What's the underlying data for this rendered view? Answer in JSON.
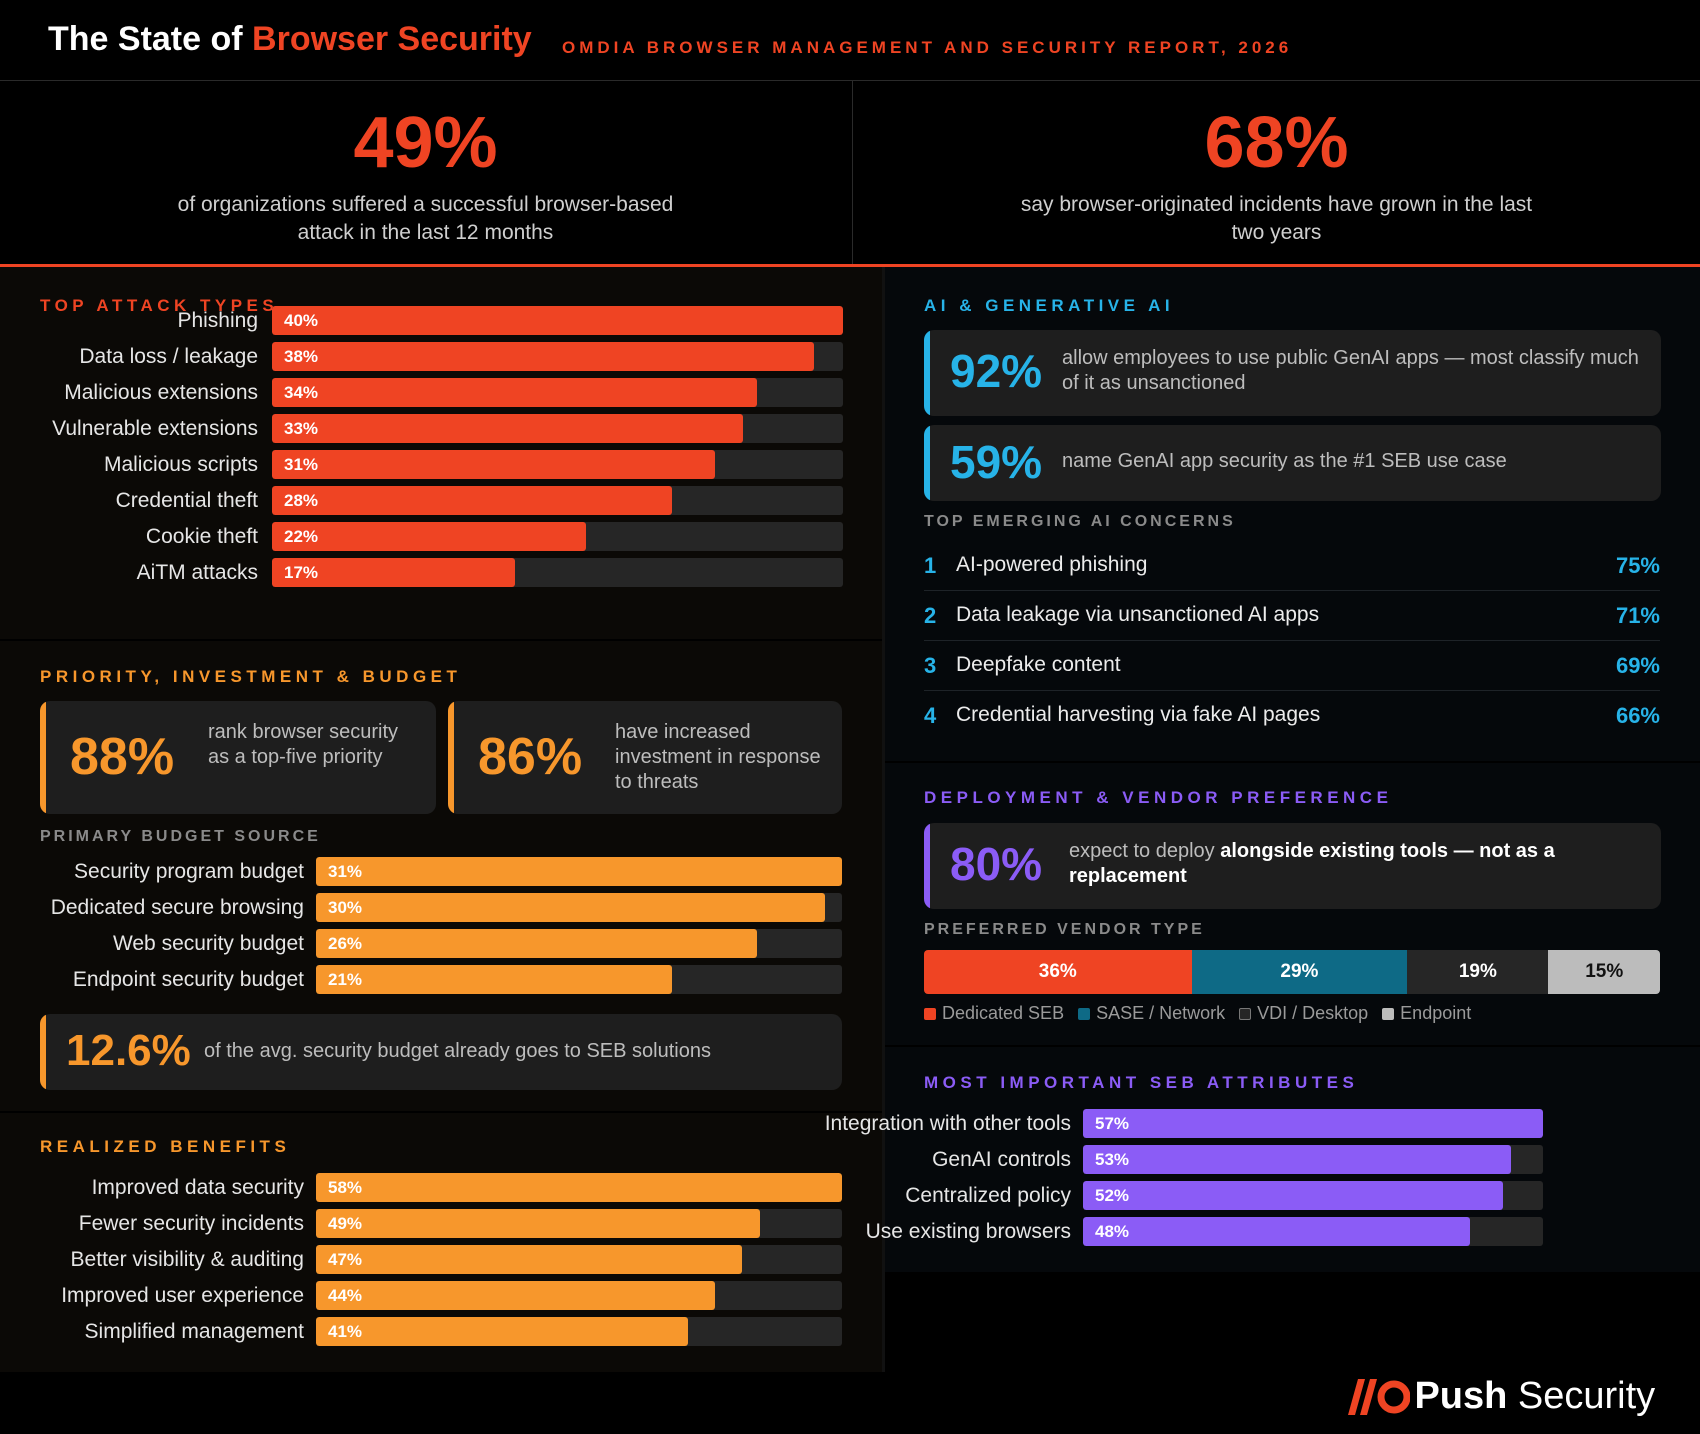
{
  "header": {
    "title_prefix": "The State of ",
    "title_accent": "Browser Security",
    "subtitle": "OMDIA BROWSER MANAGEMENT AND SECURITY REPORT, 2026"
  },
  "hero": {
    "left": {
      "value": "49%",
      "text": "of organizations suffered a successful browser-based attack in the last 12 months"
    },
    "right": {
      "value": "68%",
      "text": "say browser-originated incidents have grown in the last two years"
    }
  },
  "colors": {
    "red": "#ef4423",
    "orange": "#f7972c",
    "blue": "#27b3e8",
    "teal": "#0e6a86",
    "purple": "#8b5cf6",
    "dark_gray": "#262626",
    "light_gray": "#bcbcbc"
  },
  "chart_data": [
    {
      "type": "bar",
      "title": "TOP ATTACK TYPES",
      "orientation": "horizontal",
      "categories": [
        "Phishing",
        "Data loss / leakage",
        "Malicious extensions",
        "Vulnerable extensions",
        "Malicious scripts",
        "Credential theft",
        "Cookie theft",
        "AiTM attacks"
      ],
      "values": [
        40,
        38,
        34,
        33,
        31,
        28,
        22,
        17
      ],
      "labels": [
        "40%",
        "38%",
        "34%",
        "33%",
        "31%",
        "28%",
        "22%",
        "17%"
      ],
      "xlim": [
        0,
        40
      ],
      "color": "#ef4423"
    },
    {
      "type": "bar",
      "title": "PRIMARY BUDGET SOURCE",
      "orientation": "horizontal",
      "categories": [
        "Security program budget",
        "Dedicated secure browsing",
        "Web security budget",
        "Endpoint security budget"
      ],
      "values": [
        31,
        30,
        26,
        21
      ],
      "labels": [
        "31%",
        "30%",
        "26%",
        "21%"
      ],
      "xlim": [
        0,
        31
      ],
      "color": "#f7972c"
    },
    {
      "type": "bar",
      "title": "REALIZED BENEFITS",
      "orientation": "horizontal",
      "categories": [
        "Improved data security",
        "Fewer security incidents",
        "Better visibility & auditing",
        "Improved user experience",
        "Simplified management"
      ],
      "values": [
        58,
        49,
        47,
        44,
        41
      ],
      "labels": [
        "58%",
        "49%",
        "47%",
        "44%",
        "41%"
      ],
      "xlim": [
        0,
        58
      ],
      "color": "#f7972c"
    },
    {
      "type": "bar",
      "title": "PREFERRED VENDOR TYPE",
      "orientation": "stacked-horizontal",
      "categories": [
        "Dedicated SEB",
        "SASE / Network",
        "VDI / Desktop",
        "Endpoint"
      ],
      "values": [
        36,
        29,
        19,
        15
      ],
      "labels": [
        "36%",
        "29%",
        "19%",
        "15%"
      ],
      "colors": [
        "#ef4423",
        "#0e6a86",
        "#262626",
        "#bcbcbc"
      ]
    },
    {
      "type": "bar",
      "title": "MOST IMPORTANT SEB ATTRIBUTES",
      "orientation": "horizontal",
      "categories": [
        "Integration with other tools",
        "GenAI controls",
        "Centralized policy",
        "Use existing browsers"
      ],
      "values": [
        57,
        53,
        52,
        48
      ],
      "labels": [
        "57%",
        "53%",
        "52%",
        "48%"
      ],
      "xlim": [
        0,
        57
      ],
      "color": "#8b5cf6"
    }
  ],
  "sections": {
    "attack_title": "TOP ATTACK TYPES",
    "priority_title": "PRIORITY, INVESTMENT & BUDGET",
    "budget_title": "PRIMARY BUDGET SOURCE",
    "benefits_title": "REALIZED BENEFITS",
    "ai_title": "AI & GENERATIVE AI",
    "concerns_title": "TOP EMERGING AI CONCERNS",
    "deploy_title": "DEPLOYMENT & VENDOR PREFERENCE",
    "vendor_title": "PREFERRED VENDOR TYPE",
    "attributes_title": "MOST IMPORTANT SEB ATTRIBUTES"
  },
  "priority_cards": [
    {
      "value": "88%",
      "text": "rank browser security as a top-five priority"
    },
    {
      "value": "86%",
      "text": "have increased investment in response to threats"
    }
  ],
  "budget_card": {
    "value": "12.6%",
    "text": "of the avg. security budget already goes to SEB solutions"
  },
  "ai_cards": [
    {
      "value": "92%",
      "text": "allow employees to use public GenAI apps — most classify much of it as unsanctioned"
    },
    {
      "value": "59%",
      "text": "name GenAI app security as the #1 SEB use case"
    }
  ],
  "concerns": [
    {
      "num": "1",
      "text": "AI-powered phishing",
      "pct": "75%"
    },
    {
      "num": "2",
      "text": "Data leakage via unsanctioned AI apps",
      "pct": "71%"
    },
    {
      "num": "3",
      "text": "Deepfake content",
      "pct": "69%"
    },
    {
      "num": "4",
      "text": "Credential harvesting via fake AI pages",
      "pct": "66%"
    }
  ],
  "deploy_card": {
    "value": "80%",
    "text_plain": "expect to deploy ",
    "text_bold": "alongside existing tools — not as a replacement"
  },
  "logo": {
    "brand": "Push",
    "suffix": " Security",
    "icon": "push-security-logo-icon"
  }
}
